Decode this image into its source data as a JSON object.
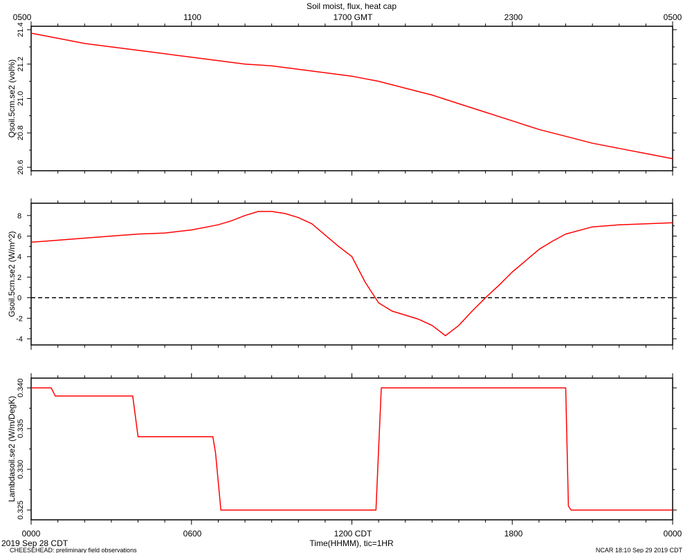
{
  "title": "Soil moist, flux, heat cap",
  "top_axis_ticks": [
    "0500",
    "1100",
    "1700 GMT",
    "2300",
    "0500"
  ],
  "bottom_axis_ticks": [
    "0000",
    "0600",
    "1200 CDT",
    "1800",
    "0000"
  ],
  "xlabel": "Time(HHMM), tic=1HR",
  "footer": {
    "date": "2019 Sep 28 CDT",
    "source": "CHEESEHEAD: preliminary field observations",
    "stamp": "NCAR 18:10 Sep 29 2019 CDT"
  },
  "colors": {
    "series": "#ff0000",
    "axis": "#000000",
    "zero_line": "#000000",
    "background": "#ffffff"
  },
  "chart_data": [
    {
      "type": "line",
      "ylabel": "Qsoil.5cm.se2 (vol%)",
      "ylim": [
        20.58,
        21.42
      ],
      "yticks": [
        20.6,
        20.8,
        21.0,
        21.2,
        21.4
      ],
      "yticklabels": [
        "20.6",
        "20.8",
        "21.0",
        "21.2",
        "21.4"
      ],
      "x_unit": "hours since 0000 CDT",
      "xlim": [
        0,
        24
      ],
      "x": [
        0,
        1,
        2,
        3,
        4,
        5,
        6,
        7,
        8,
        9,
        10,
        11,
        12,
        13,
        14,
        15,
        16,
        17,
        18,
        19,
        20,
        21,
        22,
        23,
        24
      ],
      "y": [
        21.38,
        21.35,
        21.32,
        21.3,
        21.28,
        21.26,
        21.24,
        21.22,
        21.2,
        21.19,
        21.17,
        21.15,
        21.13,
        21.1,
        21.06,
        21.02,
        20.97,
        20.92,
        20.87,
        20.82,
        20.78,
        20.74,
        20.71,
        20.68,
        20.65
      ]
    },
    {
      "type": "line",
      "ylabel": "Gsoil.5cm.se2 (W/m^2)",
      "ylim": [
        -4.6,
        9.2
      ],
      "yticks": [
        -4,
        -2,
        0,
        2,
        4,
        6,
        8
      ],
      "yticklabels": [
        "-4",
        "-2",
        "0",
        "2",
        "4",
        "6",
        "8"
      ],
      "zero_line": true,
      "x_unit": "hours since 0000 CDT",
      "xlim": [
        0,
        24
      ],
      "x": [
        0,
        0.5,
        1,
        2,
        3,
        4,
        5,
        6,
        7,
        7.5,
        8,
        8.5,
        9,
        9.5,
        10,
        10.5,
        11,
        11.5,
        12,
        12.5,
        13,
        13.5,
        14,
        14.5,
        15,
        15.5,
        16,
        16.5,
        17,
        17.5,
        18,
        18.5,
        19,
        19.5,
        20,
        21,
        22,
        23,
        24
      ],
      "y": [
        5.4,
        5.5,
        5.6,
        5.8,
        6.0,
        6.2,
        6.3,
        6.6,
        7.1,
        7.5,
        8.0,
        8.4,
        8.4,
        8.2,
        7.8,
        7.2,
        6.1,
        5.0,
        4.0,
        1.5,
        -0.5,
        -1.3,
        -1.7,
        -2.1,
        -2.7,
        -3.7,
        -2.7,
        -1.3,
        0.0,
        1.2,
        2.5,
        3.6,
        4.7,
        5.5,
        6.2,
        6.9,
        7.1,
        7.2,
        7.3
      ]
    },
    {
      "type": "line",
      "ylabel": "Lambdasoil.se2 (W/m/DegK)",
      "ylim": [
        0.3238,
        0.3412
      ],
      "yticks": [
        0.325,
        0.33,
        0.335,
        0.34
      ],
      "yticklabels": [
        "0.325",
        "0.330",
        "0.335",
        "0.340"
      ],
      "x_unit": "hours since 0000 CDT",
      "xlim": [
        0,
        24
      ],
      "x": [
        0,
        0.75,
        0.9,
        1.0,
        3.8,
        4.0,
        6.8,
        6.9,
        7.1,
        12.9,
        13.1,
        20.0,
        20.1,
        20.2,
        24
      ],
      "y": [
        0.34,
        0.34,
        0.339,
        0.339,
        0.339,
        0.334,
        0.334,
        0.332,
        0.325,
        0.325,
        0.34,
        0.34,
        0.3255,
        0.325,
        0.325
      ]
    }
  ]
}
